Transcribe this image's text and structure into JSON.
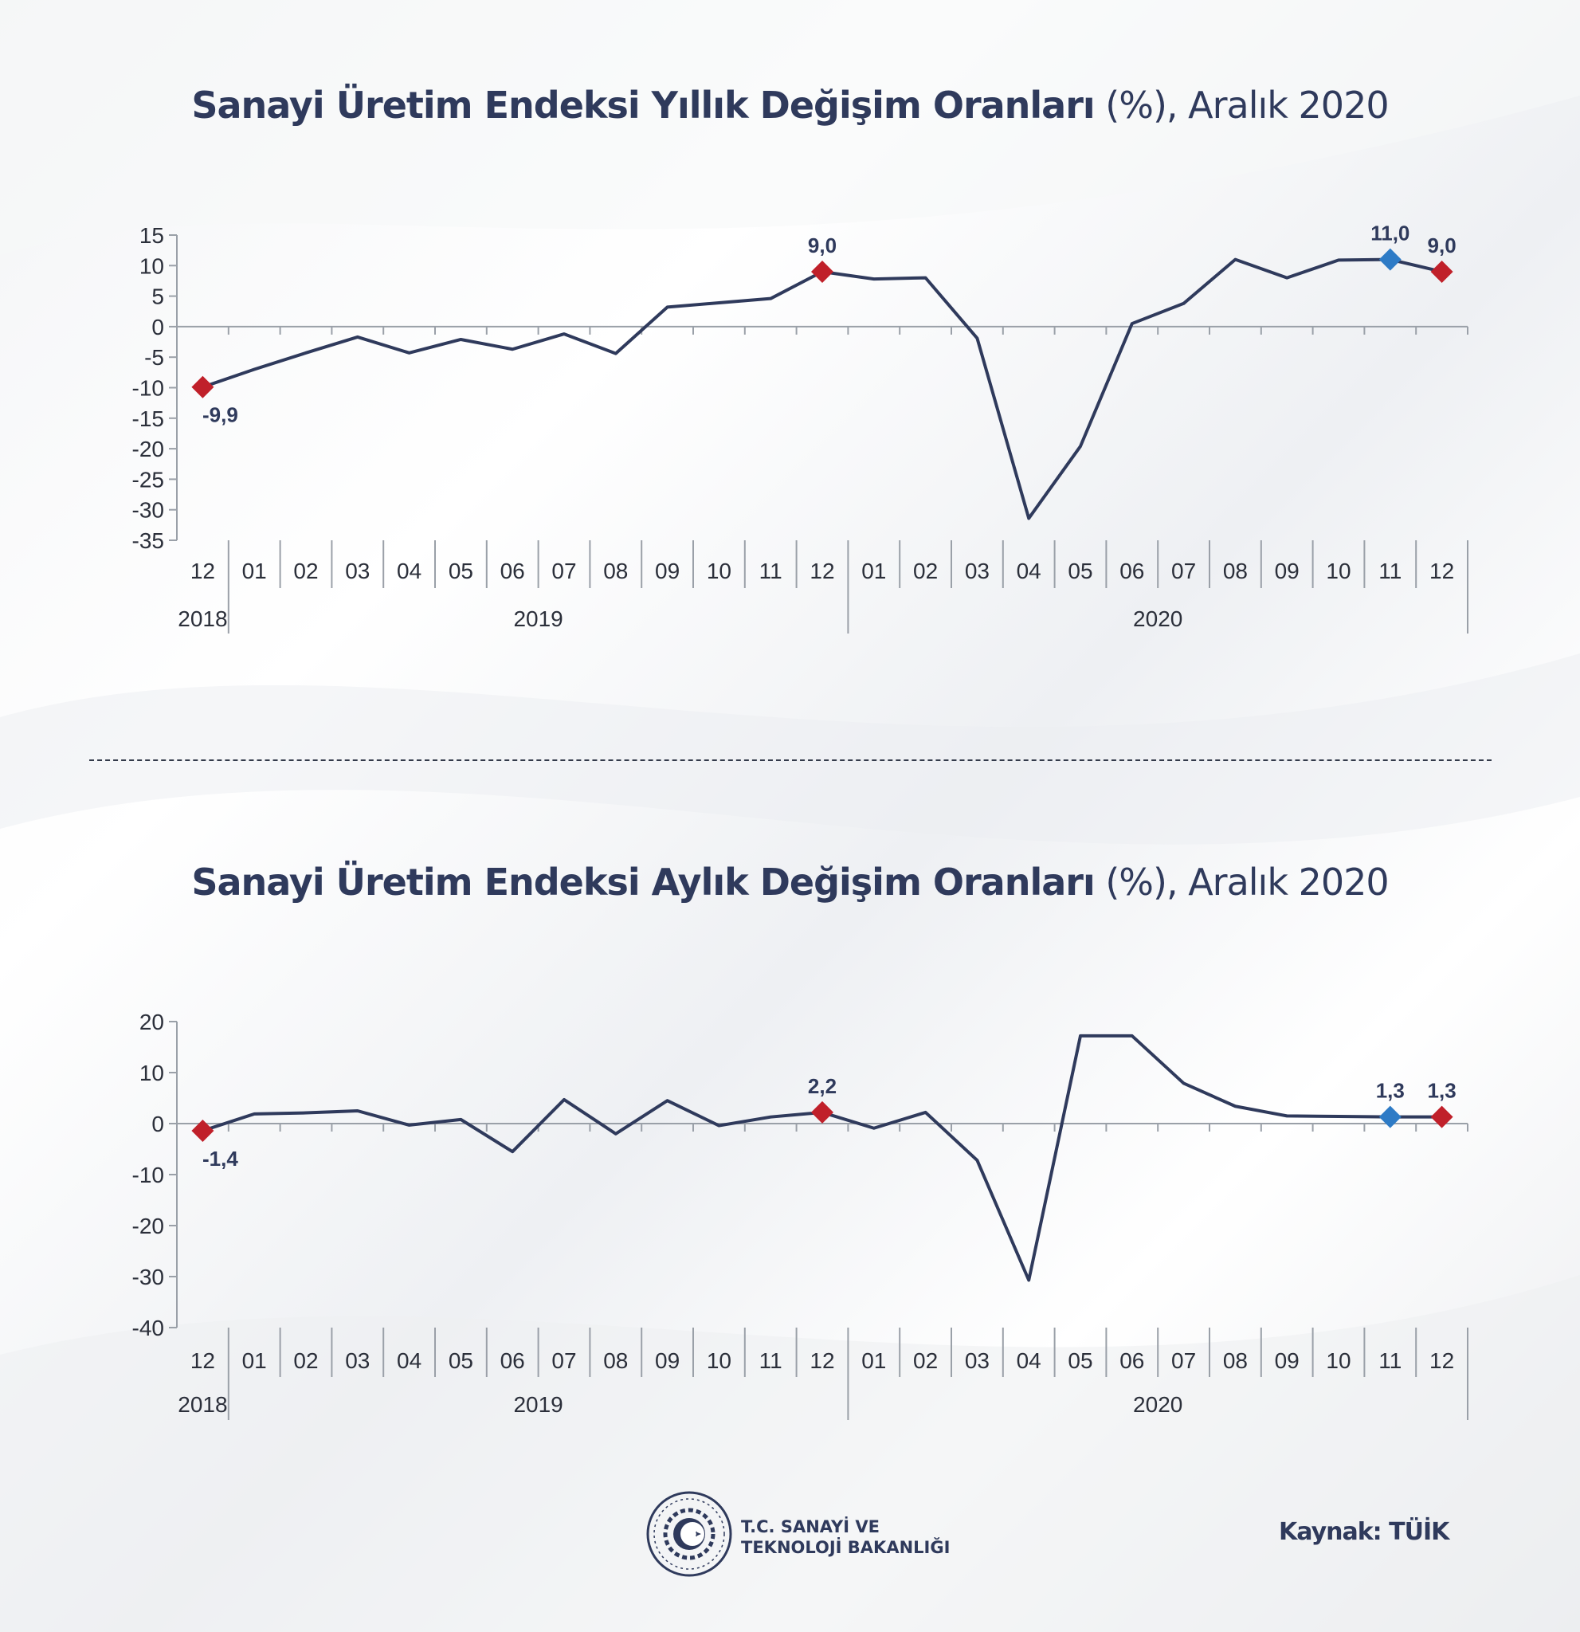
{
  "chart_data": [
    {
      "type": "line",
      "title": "Sanayi Üretim Endeksi Yıllık Değişim Oranları (%), Aralık 2020",
      "title_bold": "Sanayi Üretim Endeksi Yıllık Değişim Oranları",
      "title_light": " (%), Aralık 2020",
      "categories": [
        "12",
        "01",
        "02",
        "03",
        "04",
        "05",
        "06",
        "07",
        "08",
        "09",
        "10",
        "11",
        "12",
        "01",
        "02",
        "03",
        "04",
        "05",
        "06",
        "07",
        "08",
        "09",
        "10",
        "11",
        "12"
      ],
      "year_groups": [
        {
          "label": "2018",
          "start": 0,
          "end": 0
        },
        {
          "label": "2019",
          "start": 1,
          "end": 12
        },
        {
          "label": "2020",
          "start": 13,
          "end": 24
        }
      ],
      "values": [
        -9.9,
        -7.0,
        -4.3,
        -1.7,
        -4.3,
        -2.1,
        -3.7,
        -1.2,
        -4.4,
        3.2,
        3.9,
        4.6,
        9.0,
        7.8,
        8.0,
        -1.9,
        -31.4,
        -19.6,
        0.5,
        3.8,
        11.0,
        8.0,
        10.9,
        11.0,
        9.0
      ],
      "ylim": [
        -35,
        15
      ],
      "yticks": [
        15,
        10,
        5,
        0,
        -5,
        -10,
        -15,
        -20,
        -25,
        -30,
        -35
      ],
      "ytick_labels": [
        "15",
        "10",
        "5",
        "0",
        "-5",
        "-10",
        "-15",
        "-20",
        "-25",
        "-30",
        "-35"
      ],
      "markers": [
        {
          "index": 0,
          "color": "#c0202a",
          "label": "-9,9",
          "label_pos": "below"
        },
        {
          "index": 12,
          "color": "#c0202a",
          "label": "9,0",
          "label_pos": "above"
        },
        {
          "index": 23,
          "color": "#2e7bc6",
          "label": "11,0",
          "label_pos": "above"
        },
        {
          "index": 24,
          "color": "#c0202a",
          "label": "9,0",
          "label_pos": "above"
        }
      ],
      "line_color": "#2f3a5c"
    },
    {
      "type": "line",
      "title": "Sanayi Üretim Endeksi Aylık Değişim Oranları (%), Aralık 2020",
      "title_bold": "Sanayi Üretim Endeksi Aylık Değişim Oranları",
      "title_light": " (%), Aralık 2020",
      "categories": [
        "12",
        "01",
        "02",
        "03",
        "04",
        "05",
        "06",
        "07",
        "08",
        "09",
        "10",
        "11",
        "12",
        "01",
        "02",
        "03",
        "04",
        "05",
        "06",
        "07",
        "08",
        "09",
        "10",
        "11",
        "12"
      ],
      "year_groups": [
        {
          "label": "2018",
          "start": 0,
          "end": 0
        },
        {
          "label": "2019",
          "start": 1,
          "end": 12
        },
        {
          "label": "2020",
          "start": 13,
          "end": 24
        }
      ],
      "values": [
        -1.4,
        1.9,
        2.1,
        2.5,
        -0.3,
        0.8,
        -5.5,
        4.7,
        -2.0,
        4.5,
        -0.4,
        1.3,
        2.2,
        -0.9,
        2.2,
        -7.2,
        -30.7,
        17.2,
        17.2,
        7.9,
        3.4,
        1.5,
        1.4,
        1.3,
        1.3
      ],
      "ylim": [
        -40,
        20
      ],
      "yticks": [
        20,
        10,
        0,
        -10,
        -20,
        -30,
        -40
      ],
      "ytick_labels": [
        "20",
        "10",
        "0",
        "-10",
        "-20",
        "-30",
        "-40"
      ],
      "markers": [
        {
          "index": 0,
          "color": "#c0202a",
          "label": "-1,4",
          "label_pos": "below"
        },
        {
          "index": 12,
          "color": "#c0202a",
          "label": "2,2",
          "label_pos": "above"
        },
        {
          "index": 23,
          "color": "#2e7bc6",
          "label": "1,3",
          "label_pos": "above"
        },
        {
          "index": 24,
          "color": "#c0202a",
          "label": "1,3",
          "label_pos": "above"
        }
      ],
      "line_color": "#2f3a5c"
    }
  ],
  "footer": {
    "org_line1": "T.C. SANAYİ VE",
    "org_line2": "TEKNOLOJİ BAKANLIĞI",
    "source": "Kaynak: TÜİK"
  },
  "colors": {
    "navy": "#2f3a5c",
    "red": "#c0202a",
    "blue": "#2e7bc6"
  }
}
